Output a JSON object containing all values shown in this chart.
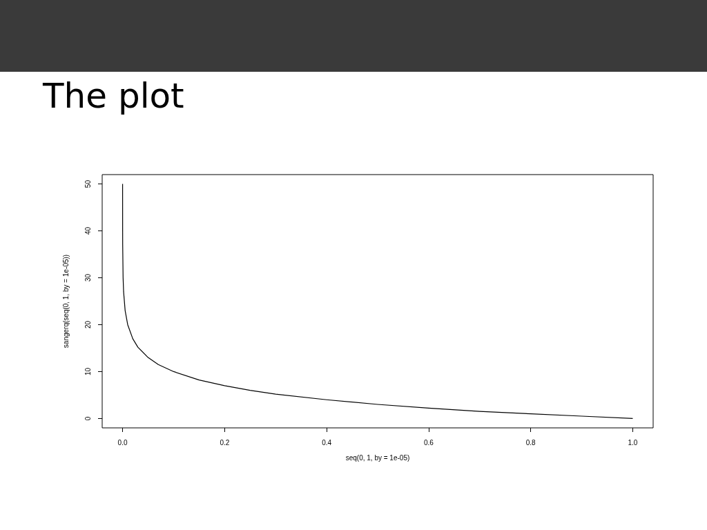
{
  "chart_data": {
    "type": "line",
    "title": "The plot",
    "xlabel": "seq(0, 1, by = 1e-05)",
    "ylabel": "sangerq(seq(0, 1, by = 1e-05))",
    "x": [
      1e-05,
      0.0001,
      0.0002,
      0.001,
      0.002,
      0.005,
      0.01,
      0.02,
      0.03,
      0.05,
      0.07,
      0.1,
      0.15,
      0.2,
      0.25,
      0.3,
      0.4,
      0.5,
      0.6,
      0.7,
      0.8,
      0.9,
      1
    ],
    "series": [
      {
        "color": "#000000",
        "values": [
          50,
          40,
          37,
          30,
          27,
          23,
          20,
          17,
          15.2,
          13,
          11.5,
          10,
          8.2,
          7,
          6,
          5.2,
          4,
          3,
          2.2,
          1.5,
          1,
          0.5,
          0
        ]
      }
    ],
    "xlim": [
      -0.04,
      1.04
    ],
    "ylim": [
      -2,
      52
    ],
    "xticks": [
      {
        "value": 0,
        "label": "0.0"
      },
      {
        "value": 0.2,
        "label": "0.2"
      },
      {
        "value": 0.4,
        "label": "0.4"
      },
      {
        "value": 0.6,
        "label": "0.6"
      },
      {
        "value": 0.8,
        "label": "0.8"
      },
      {
        "value": 1,
        "label": "1.0"
      }
    ],
    "yticks": [
      0,
      10,
      20,
      30,
      40,
      50
    ],
    "grid": false,
    "marker": "none",
    "line_style": "solid"
  }
}
